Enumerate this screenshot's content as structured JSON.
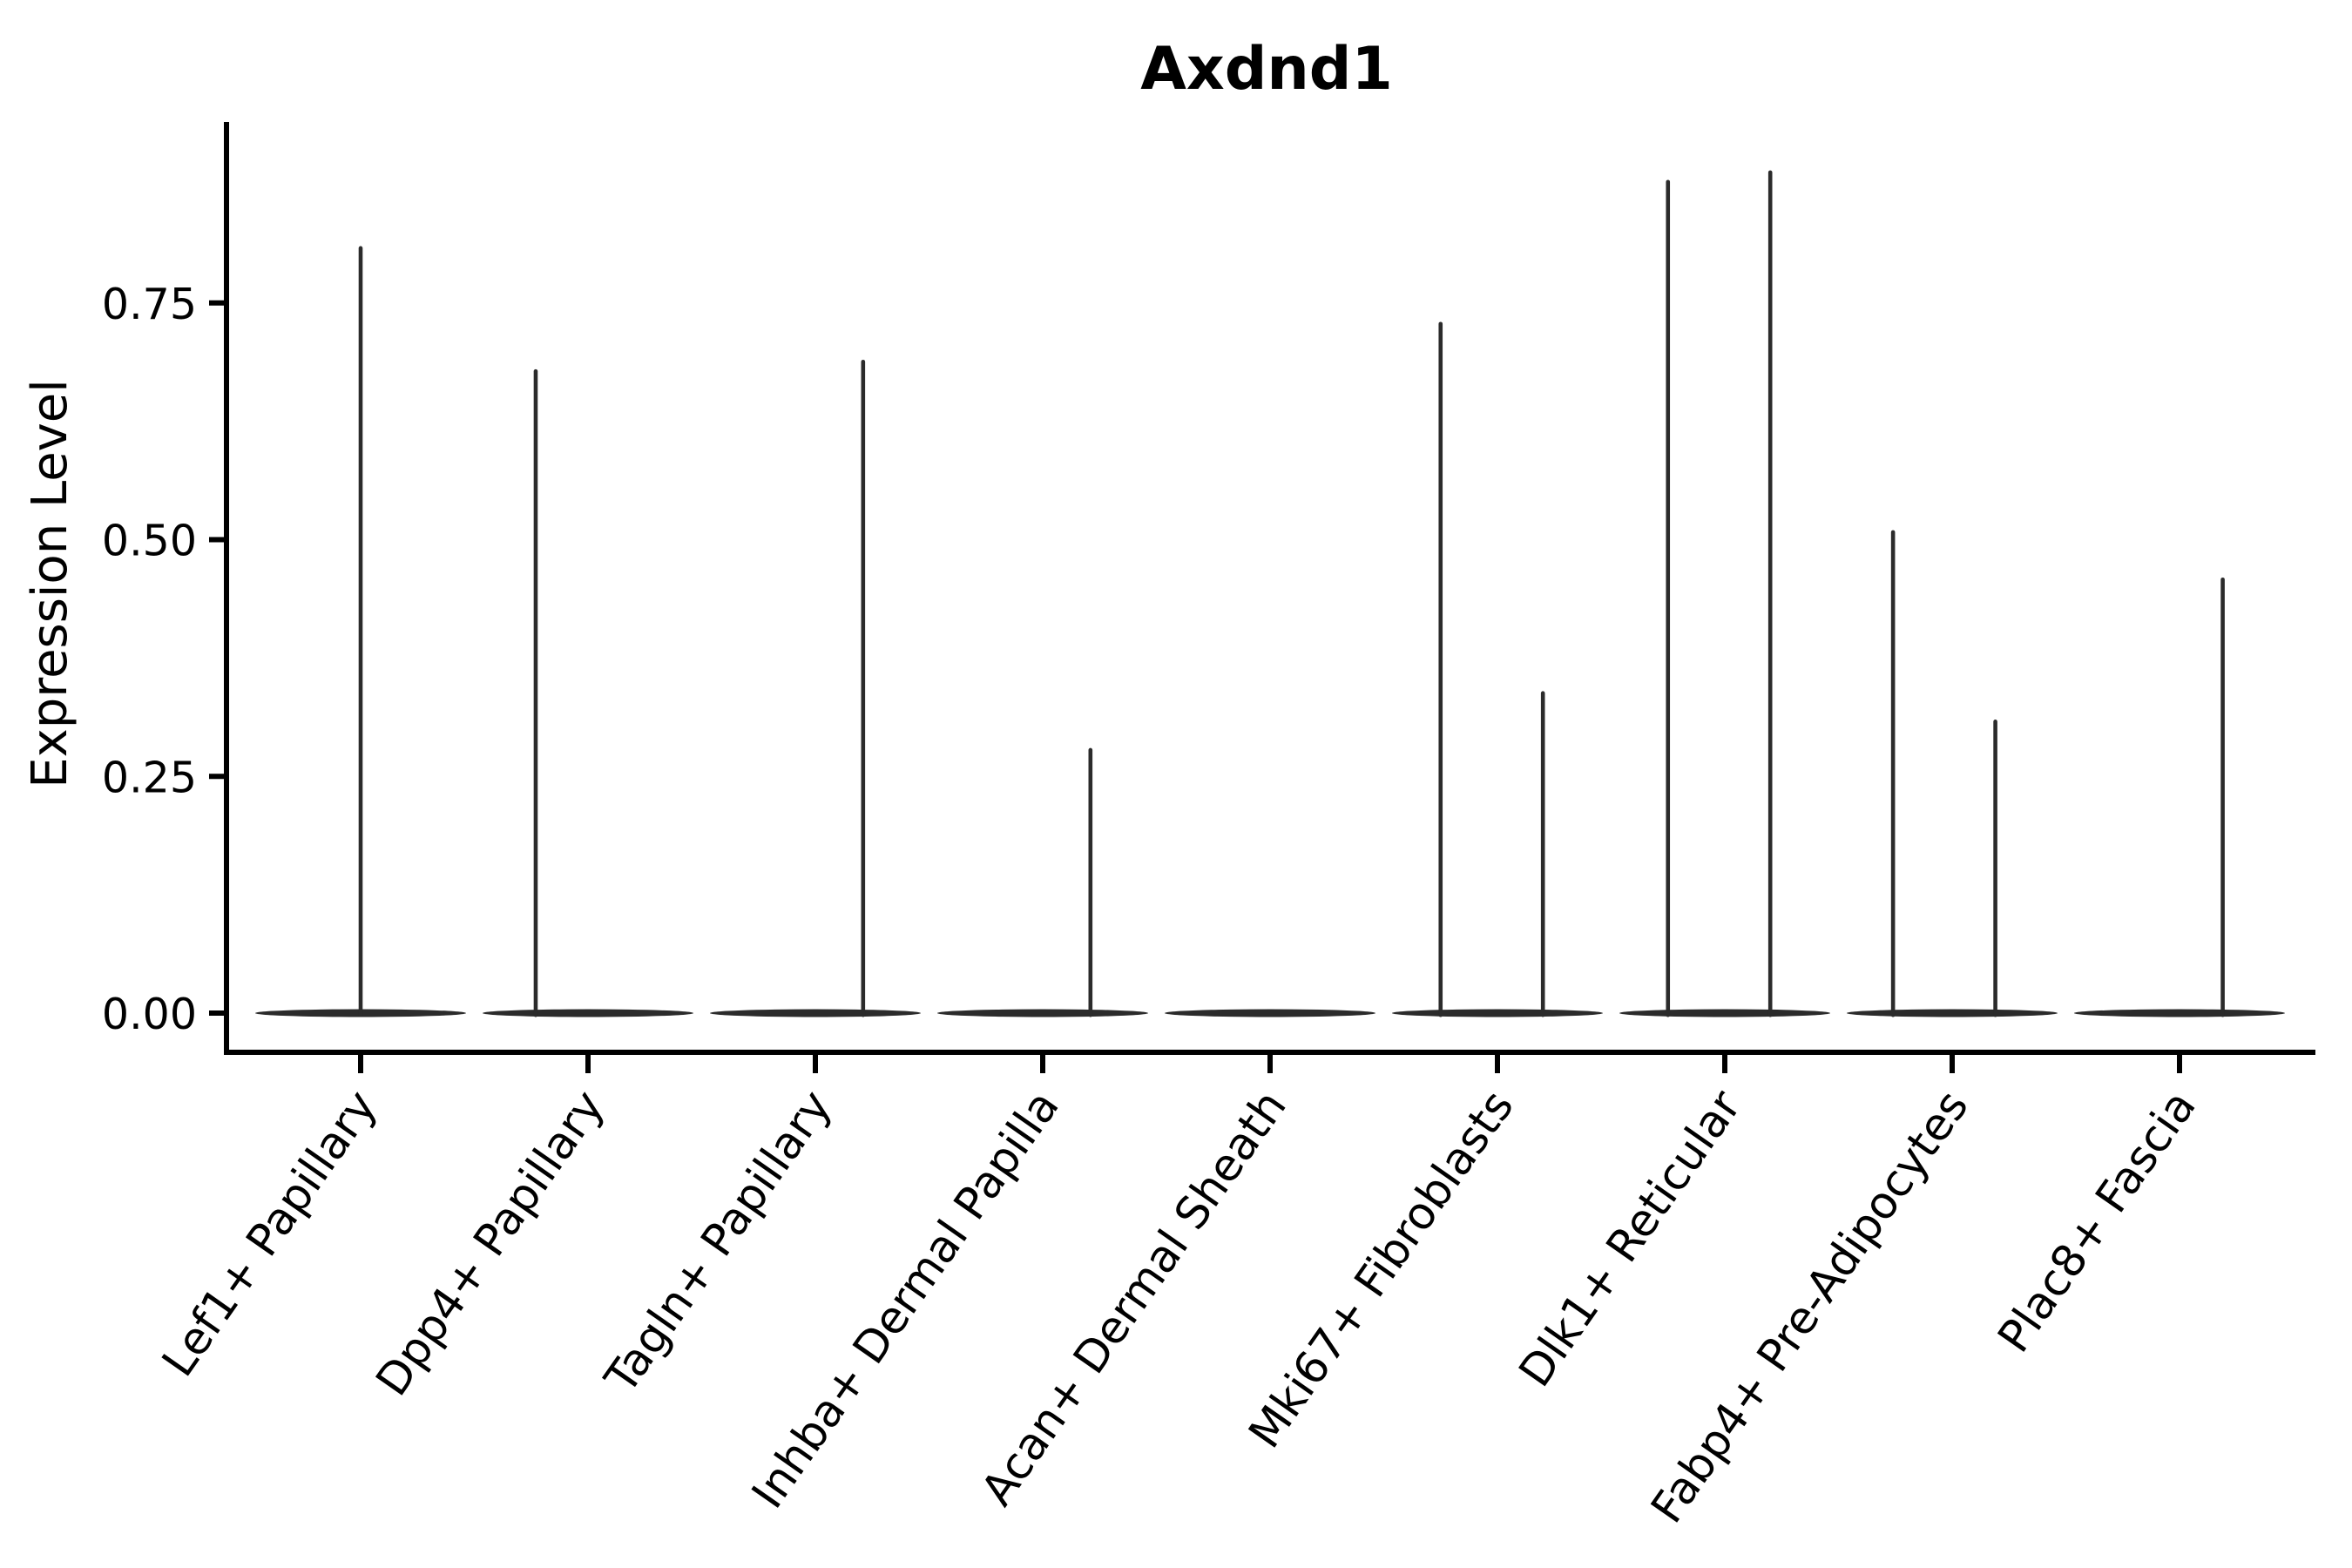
{
  "title": "Axdnd1",
  "y_axis": {
    "label": "Expression Level",
    "tick_labels": [
      "0.00",
      "0.25",
      "0.50",
      "0.75"
    ]
  },
  "x_axis": {
    "categories": [
      "Lef1+ Papillary",
      "Dpp4+ Papillary",
      "Tagln+ Papillary",
      "Inhba+ Dermal Papilla",
      "Acan+ Dermal Sheath",
      "Mki67+ Fibroblasts",
      "Dlk1+ Reticular",
      "Fabp4+ Pre-Adipocytes",
      "Plac8+ Fascia"
    ]
  },
  "colors": {
    "ink": "#2b2b2b",
    "axis": "#000000",
    "text": "#000000",
    "background": "#ffffff"
  },
  "chart_data": {
    "type": "violin",
    "title": "Axdnd1",
    "xlabel": "",
    "ylabel": "Expression Level",
    "ylim": [
      -0.04,
      0.94
    ],
    "grid": false,
    "legend": "none",
    "y_ticks": [
      0,
      0.25,
      0.5,
      0.75
    ],
    "y_tick_labels": [
      "0.00",
      "0.25",
      "0.50",
      "0.75"
    ],
    "categories": [
      "Lef1+ Papillary",
      "Dpp4+ Papillary",
      "Tagln+ Papillary",
      "Inhba+ Dermal Papilla",
      "Acan+ Dermal Sheath",
      "Mki67+ Fibroblasts",
      "Dlk1+ Reticular",
      "Fabp4+ Pre-Adipocytes",
      "Plac8+ Fascia"
    ],
    "violins": [
      {
        "category": "Lef1+ Papillary",
        "zero_mass": true,
        "spikes": [
          {
            "value": 0.81,
            "offset_frac": 0.0
          }
        ]
      },
      {
        "category": "Dpp4+ Papillary",
        "zero_mass": true,
        "spikes": [
          {
            "value": 0.68,
            "offset_frac": -0.23
          }
        ]
      },
      {
        "category": "Tagln+ Papillary",
        "zero_mass": true,
        "spikes": [
          {
            "value": 0.69,
            "offset_frac": 0.21
          }
        ]
      },
      {
        "category": "Inhba+ Dermal Papilla",
        "zero_mass": true,
        "spikes": [
          {
            "value": 0.28,
            "offset_frac": 0.21
          }
        ]
      },
      {
        "category": "Acan+ Dermal Sheath",
        "zero_mass": true,
        "spikes": []
      },
      {
        "category": "Mki67+ Fibroblasts",
        "zero_mass": true,
        "spikes": [
          {
            "value": 0.73,
            "offset_frac": -0.25
          },
          {
            "value": 0.34,
            "offset_frac": 0.2
          }
        ]
      },
      {
        "category": "Dlk1+ Reticular",
        "zero_mass": true,
        "spikes": [
          {
            "value": 0.88,
            "offset_frac": -0.25
          },
          {
            "value": 0.89,
            "offset_frac": 0.2
          }
        ]
      },
      {
        "category": "Fabp4+ Pre-Adipocytes",
        "zero_mass": true,
        "spikes": [
          {
            "value": 0.51,
            "offset_frac": -0.26
          },
          {
            "value": 0.31,
            "offset_frac": 0.19
          }
        ]
      },
      {
        "category": "Plac8+ Fascia",
        "zero_mass": true,
        "spikes": [
          {
            "value": 0.46,
            "offset_frac": 0.19
          }
        ]
      }
    ]
  }
}
